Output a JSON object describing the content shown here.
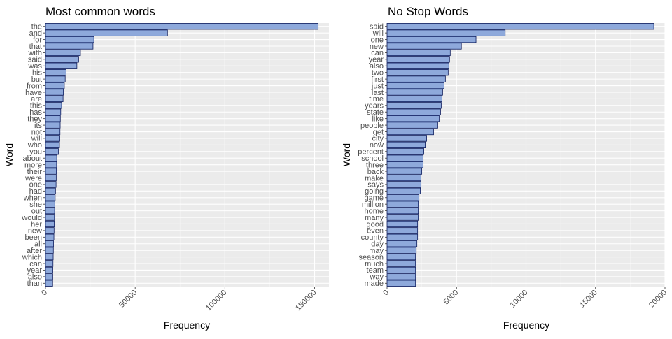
{
  "chart_data": [
    {
      "type": "bar",
      "orientation": "horizontal",
      "title": "Most common words",
      "xlabel": "Frequency",
      "ylabel": "Word",
      "xlim": [
        0,
        158000
      ],
      "xticks": [
        0,
        50000,
        100000,
        150000
      ],
      "xtick_labels": [
        "0",
        "50000",
        "100000",
        "150000"
      ],
      "grid": true,
      "bar_fill": "#8EA9DB",
      "bar_stroke": "#0B1A5C",
      "panel_bg": "#EBEBEB",
      "categories": [
        "the",
        "and",
        "for",
        "that",
        "with",
        "said",
        "was",
        "his",
        "but",
        "from",
        "have",
        "are",
        "this",
        "has",
        "they",
        "its",
        "not",
        "will",
        "who",
        "you",
        "about",
        "more",
        "their",
        "were",
        "one",
        "had",
        "when",
        "she",
        "out",
        "would",
        "her",
        "new",
        "been",
        "all",
        "after",
        "which",
        "can",
        "year",
        "also",
        "than"
      ],
      "values": [
        152000,
        68000,
        27000,
        26500,
        19500,
        18500,
        17500,
        11500,
        11000,
        10500,
        10000,
        9800,
        9000,
        8500,
        8300,
        8200,
        8100,
        8000,
        7800,
        7200,
        6300,
        6200,
        6100,
        6000,
        5900,
        5600,
        5400,
        5200,
        5100,
        5000,
        4900,
        4800,
        4700,
        4500,
        4400,
        4300,
        4200,
        4100,
        4050,
        4000
      ]
    },
    {
      "type": "bar",
      "orientation": "horizontal",
      "title": "No Stop Words",
      "xlabel": "Frequency",
      "ylabel": "Word",
      "xlim": [
        0,
        20000
      ],
      "xticks": [
        0,
        5000,
        10000,
        15000,
        20000
      ],
      "xtick_labels": [
        "0",
        "5000",
        "10000",
        "15000",
        "20000"
      ],
      "grid": true,
      "bar_fill": "#8EA9DB",
      "bar_stroke": "#0B1A5C",
      "panel_bg": "#EBEBEB",
      "categories": [
        "said",
        "will",
        "one",
        "new",
        "can",
        "year",
        "also",
        "two",
        "first",
        "just",
        "last",
        "time",
        "years",
        "state",
        "like",
        "people",
        "get",
        "city",
        "now",
        "percent",
        "school",
        "three",
        "back",
        "make",
        "says",
        "going",
        "game",
        "million",
        "home",
        "many",
        "good",
        "even",
        "county",
        "day",
        "may",
        "season",
        "much",
        "team",
        "way",
        "made"
      ],
      "values": [
        19200,
        8500,
        6400,
        5350,
        4550,
        4500,
        4450,
        4400,
        4200,
        4100,
        4000,
        3950,
        3900,
        3850,
        3750,
        3650,
        3350,
        2850,
        2750,
        2650,
        2600,
        2600,
        2500,
        2450,
        2450,
        2400,
        2300,
        2250,
        2250,
        2250,
        2200,
        2200,
        2200,
        2150,
        2100,
        2050,
        2050,
        2050,
        2050,
        2050
      ]
    }
  ]
}
